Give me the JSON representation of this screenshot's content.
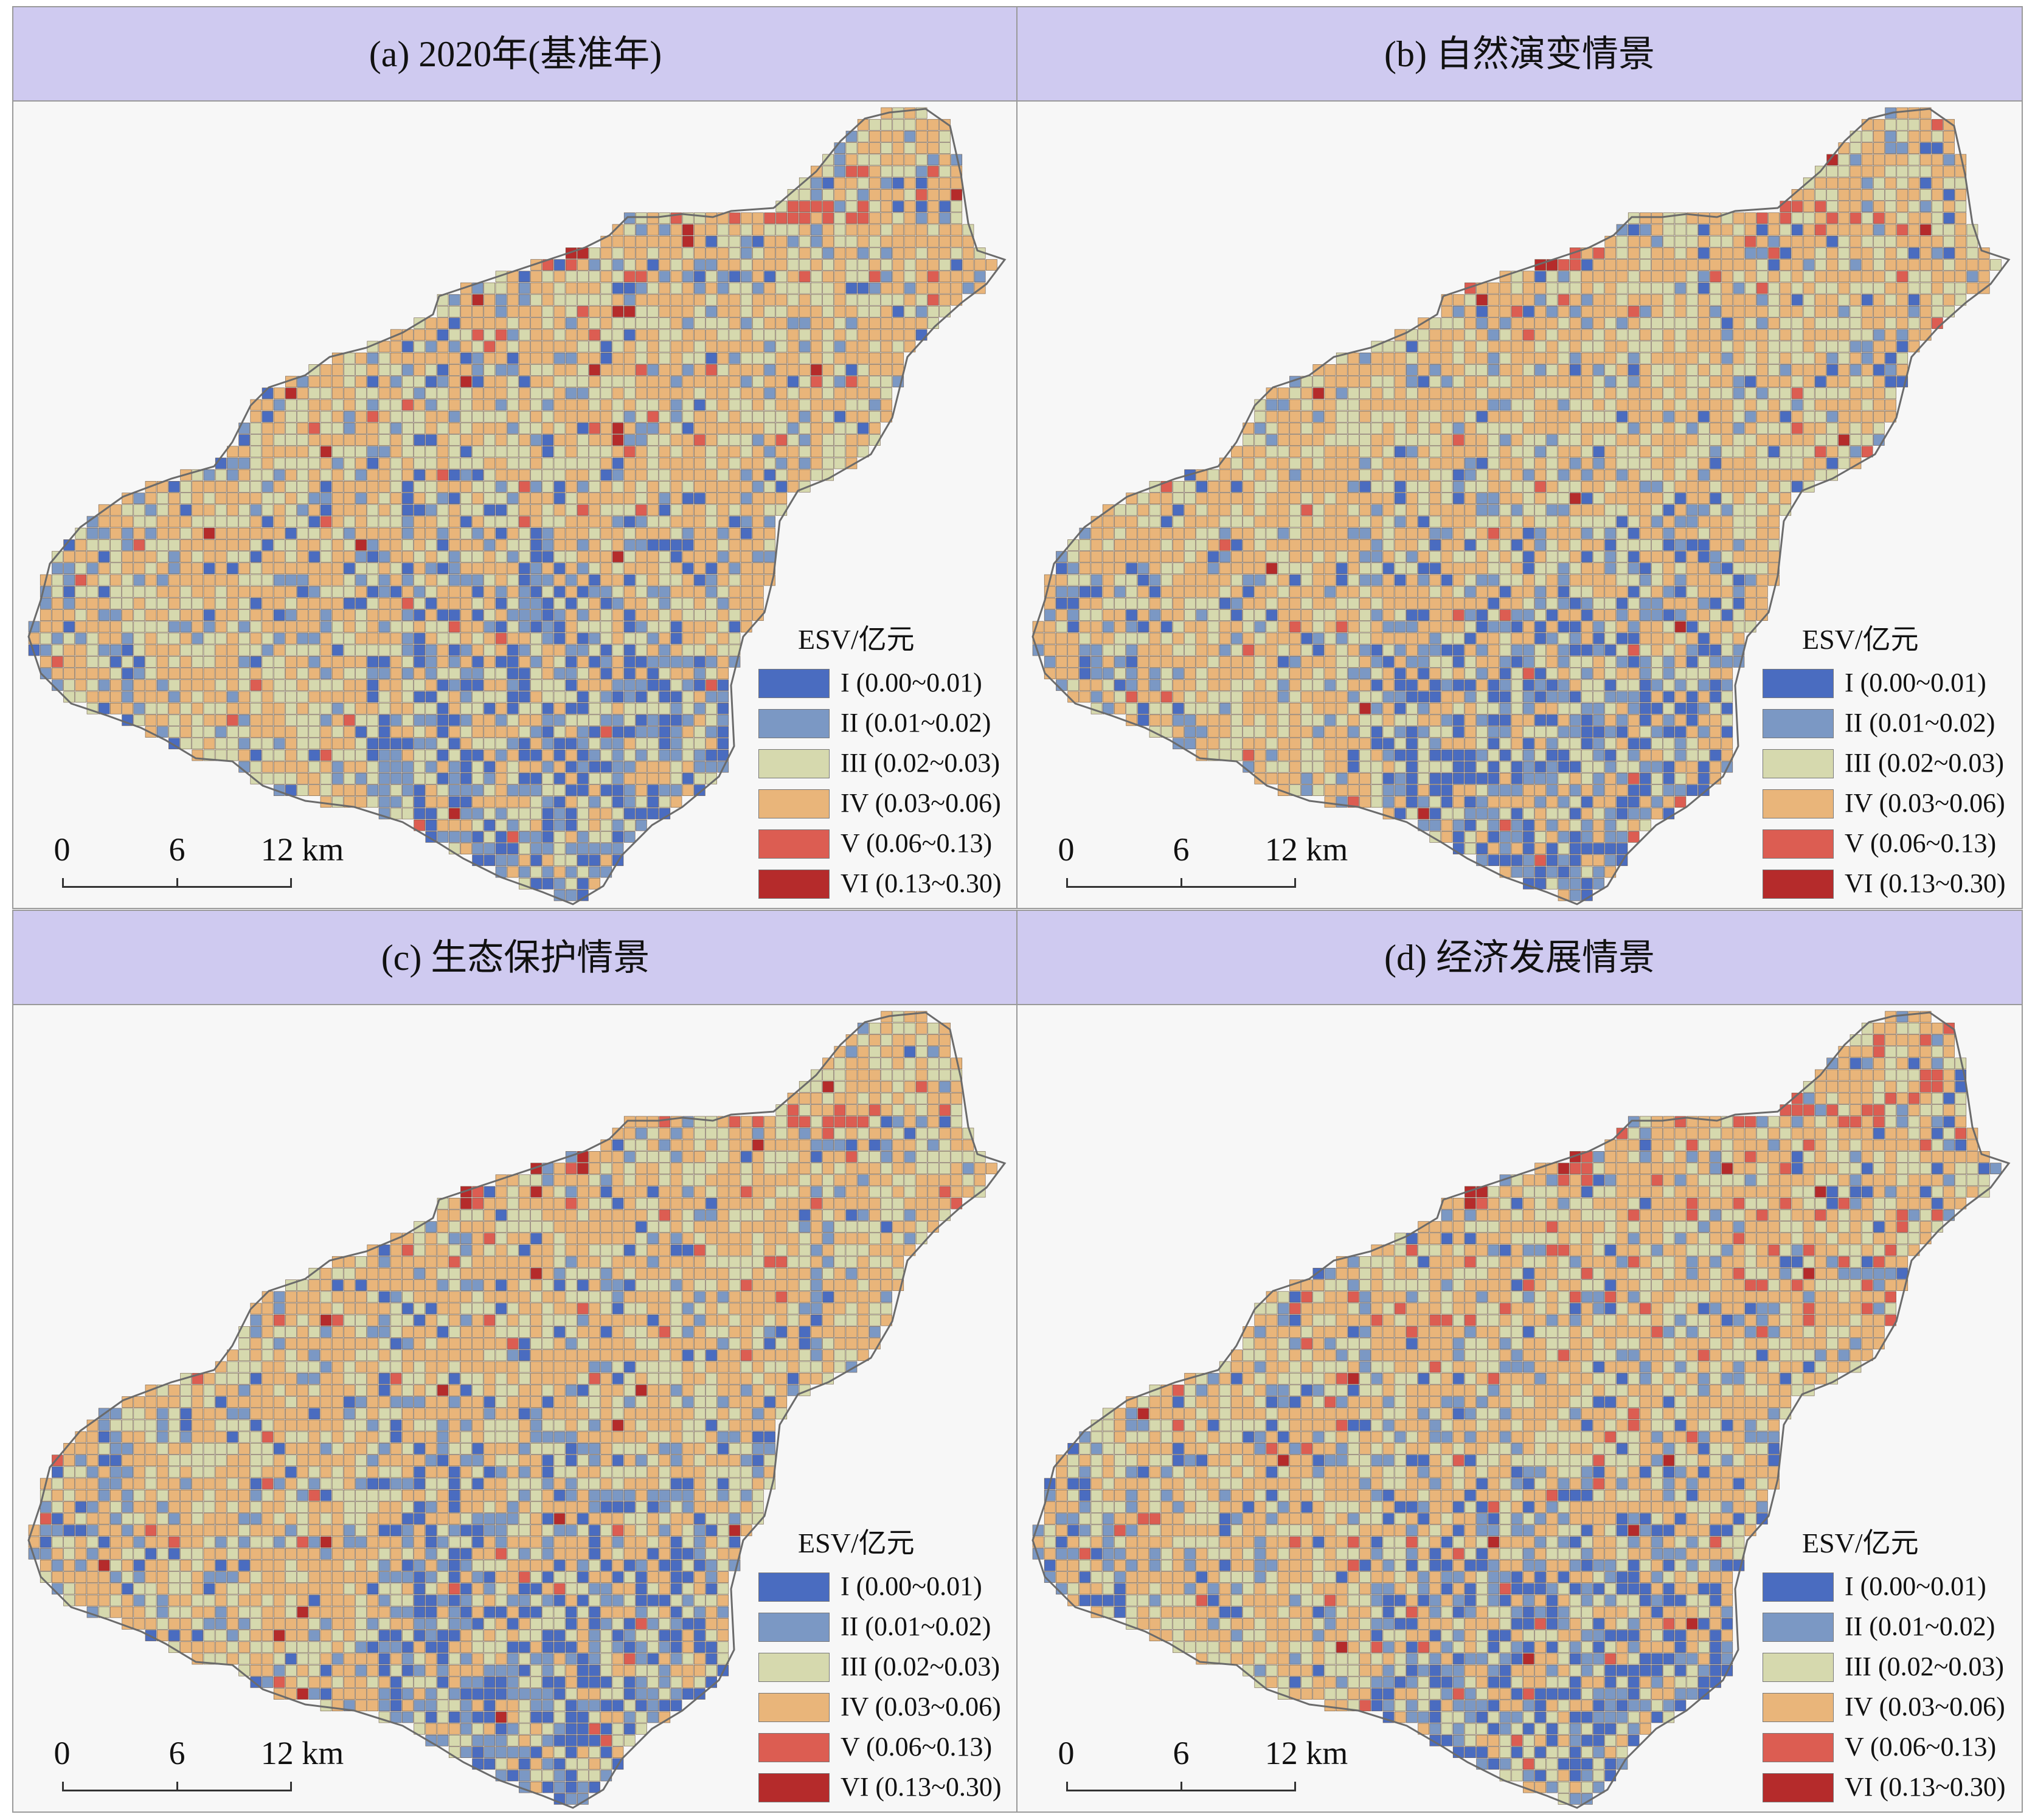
{
  "colors": {
    "title_bar": "#cfcaf0",
    "background": "#f7f7f7",
    "cell_border": "#6f5a48",
    "outline": "#6b6b6b"
  },
  "legend": {
    "title": "ESV/亿元",
    "classes": [
      {
        "label": "I (0.00~0.01)",
        "color": "#4a6cc0",
        "min": 0.0,
        "max": 0.01
      },
      {
        "label": "II (0.01~0.02)",
        "color": "#7b98c4",
        "min": 0.01,
        "max": 0.02
      },
      {
        "label": "III (0.02~0.03)",
        "color": "#d6d9ae",
        "min": 0.02,
        "max": 0.03
      },
      {
        "label": "IV (0.03~0.06)",
        "color": "#e9b57a",
        "min": 0.03,
        "max": 0.06
      },
      {
        "label": "V (0.06~0.13)",
        "color": "#dc5d52",
        "min": 0.06,
        "max": 0.13
      },
      {
        "label": "VI (0.13~0.30)",
        "color": "#b52b2b",
        "min": 0.13,
        "max": 0.3
      }
    ]
  },
  "scale": {
    "ticks": [
      "0",
      "6",
      "12 km"
    ],
    "tick_values_km": [
      0,
      6,
      12
    ]
  },
  "panels": [
    {
      "title": "(a) 2020年(基准年)",
      "scenario": "baseline"
    },
    {
      "title": "(b) 自然演变情景",
      "scenario": "natural"
    },
    {
      "title": "(c) 生态保护情景",
      "scenario": "protection"
    },
    {
      "title": "(d) 经济发展情景",
      "scenario": "economic"
    }
  ]
}
